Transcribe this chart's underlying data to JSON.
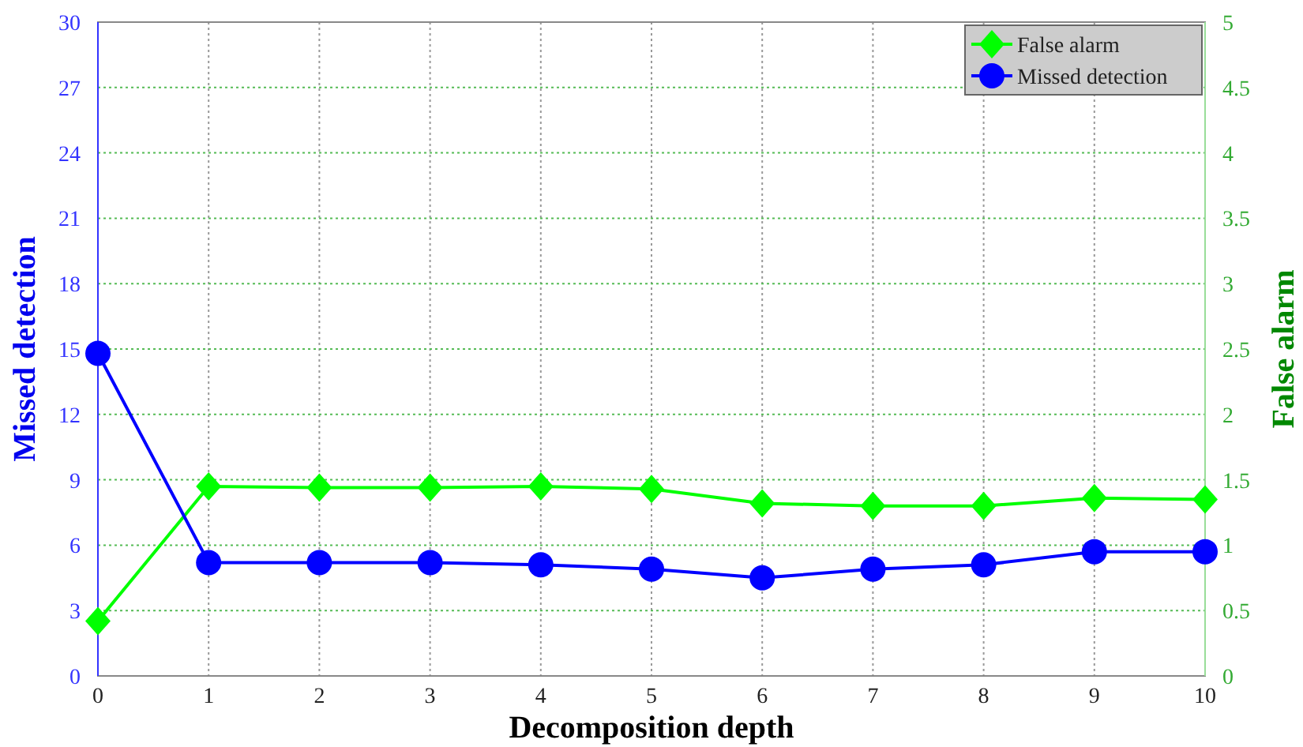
{
  "chart_data": {
    "type": "line",
    "xlabel": "Decomposition depth",
    "ylabel": "Missed detection",
    "y2label": "False alarm",
    "x": [
      0,
      1,
      2,
      3,
      4,
      5,
      6,
      7,
      8,
      9,
      10
    ],
    "xlim": [
      0,
      10
    ],
    "xticks": [
      0,
      1,
      2,
      3,
      4,
      5,
      6,
      7,
      8,
      9,
      10
    ],
    "ylim": [
      0,
      30
    ],
    "yticks": [
      0,
      3,
      6,
      9,
      12,
      15,
      18,
      21,
      24,
      27,
      30
    ],
    "y2lim": [
      0,
      5
    ],
    "y2ticks": [
      0,
      0.5,
      1,
      1.5,
      2,
      2.5,
      3,
      3.5,
      4,
      4.5,
      5
    ],
    "grid": true,
    "legend": "top right",
    "series": [
      {
        "name": "False alarm",
        "color": "#00ff00",
        "axis": "y2",
        "marker": "diamond",
        "values": [
          0.42,
          1.45,
          1.44,
          1.44,
          1.45,
          1.43,
          1.32,
          1.3,
          1.3,
          1.36,
          1.35
        ]
      },
      {
        "name": "Missed detection",
        "color": "#0000ff",
        "axis": "y",
        "marker": "circle",
        "values": [
          14.8,
          5.2,
          5.2,
          5.2,
          5.1,
          4.9,
          4.5,
          4.9,
          5.1,
          5.7,
          5.7
        ]
      }
    ]
  }
}
